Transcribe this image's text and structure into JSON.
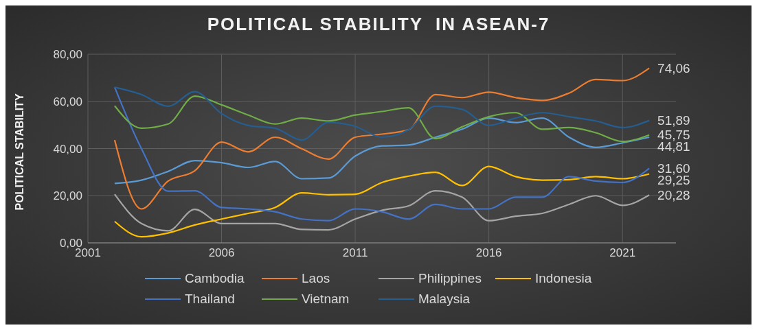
{
  "chart_data": {
    "type": "line",
    "title": "POLITICAL STABILITY  IN ASEAN-7",
    "ylabel": "POLITICAL STABILITY",
    "x": [
      2002,
      2003,
      2004,
      2005,
      2006,
      2007,
      2008,
      2009,
      2010,
      2011,
      2012,
      2013,
      2014,
      2015,
      2016,
      2017,
      2018,
      2019,
      2020,
      2021,
      2022
    ],
    "xlim": [
      2001,
      2023
    ],
    "xticks": [
      2001,
      2006,
      2011,
      2016,
      2021
    ],
    "ylim": [
      0,
      80
    ],
    "yticks": [
      {
        "value": 0,
        "label": "0,00"
      },
      {
        "value": 20,
        "label": "20,00"
      },
      {
        "value": 40,
        "label": "40,00"
      },
      {
        "value": 60,
        "label": "60,00"
      },
      {
        "value": 80,
        "label": "80,00"
      }
    ],
    "grid": true,
    "legend": "bottom",
    "marker": "none",
    "line_style": "solid",
    "series": [
      {
        "name": "Cambodia",
        "color": "#5b9bd5",
        "values": [
          25.2,
          26.6,
          30.3,
          34.9,
          34,
          32,
          34.5,
          27.2,
          27.5,
          36.8,
          41.1,
          41.5,
          44.8,
          48.2,
          52.9,
          51,
          52.9,
          44.8,
          40.5,
          42.4,
          44.81
        ],
        "value_labels": [
          null,
          null,
          null,
          null,
          null,
          null,
          null,
          null,
          null,
          null,
          null,
          null,
          null,
          null,
          null,
          null,
          null,
          null,
          null,
          null,
          "44,81"
        ]
      },
      {
        "name": "Laos",
        "color": "#ed7d31",
        "values": [
          43.6,
          14.4,
          26.2,
          30.6,
          42.7,
          38.6,
          44.8,
          39.9,
          35.5,
          44.8,
          46.1,
          48,
          62.9,
          61.6,
          63.9,
          61.6,
          60.4,
          63.5,
          69.3,
          68.8,
          74.06
        ],
        "value_labels": [
          null,
          null,
          null,
          null,
          null,
          null,
          null,
          null,
          null,
          null,
          null,
          null,
          null,
          null,
          null,
          null,
          null,
          null,
          null,
          null,
          "74,06"
        ]
      },
      {
        "name": "Philippines",
        "color": "#a5a5a5",
        "values": [
          20.6,
          8.2,
          5.1,
          14.2,
          8.2,
          8.2,
          8.2,
          5.7,
          5.5,
          10.1,
          13.8,
          15.7,
          22.1,
          19.4,
          9.4,
          11.3,
          12.5,
          16.3,
          20,
          15.9,
          20.28
        ],
        "value_labels": [
          null,
          null,
          null,
          null,
          null,
          null,
          null,
          null,
          null,
          null,
          null,
          null,
          null,
          null,
          null,
          null,
          null,
          null,
          null,
          null,
          "20,28"
        ]
      },
      {
        "name": "Indonesia",
        "color": "#ffc000",
        "values": [
          9.1,
          2.6,
          4.2,
          7.6,
          10.1,
          12.5,
          15,
          21.2,
          20.4,
          20.6,
          25.6,
          28.3,
          29.9,
          24.3,
          32.4,
          28.1,
          26.6,
          26.8,
          28.1,
          27.2,
          29.25
        ],
        "value_labels": [
          null,
          null,
          null,
          null,
          null,
          null,
          null,
          null,
          null,
          null,
          null,
          null,
          null,
          null,
          null,
          null,
          null,
          null,
          null,
          null,
          "29,25"
        ]
      },
      {
        "name": "Thailand",
        "color": "#4472c4",
        "values": [
          66,
          40,
          21.9,
          22.1,
          15,
          14.4,
          13.2,
          10.1,
          9.4,
          14.4,
          13.2,
          10.1,
          16.3,
          14.4,
          14.4,
          19.4,
          19.4,
          28.1,
          26.2,
          25.6,
          31.6
        ],
        "value_labels": [
          null,
          null,
          null,
          null,
          null,
          null,
          null,
          null,
          null,
          null,
          null,
          null,
          null,
          null,
          null,
          null,
          null,
          null,
          null,
          null,
          "31,60"
        ]
      },
      {
        "name": "Vietnam",
        "color": "#70ad47",
        "values": [
          58.1,
          48.6,
          50.4,
          62.2,
          58.5,
          54.2,
          50.4,
          52.9,
          51.7,
          54.2,
          55.7,
          57.3,
          44.2,
          49.2,
          53.5,
          55.2,
          48.2,
          48.9,
          46.7,
          43,
          45.75
        ],
        "value_labels": [
          null,
          null,
          null,
          null,
          null,
          null,
          null,
          null,
          null,
          null,
          null,
          null,
          null,
          null,
          null,
          null,
          null,
          null,
          null,
          null,
          "45,75"
        ]
      },
      {
        "name": "Malaysia",
        "color": "#255e91",
        "values": [
          66,
          62.9,
          57.9,
          64.1,
          54.8,
          49.8,
          48.6,
          43.6,
          51.1,
          49.4,
          44.8,
          48,
          57.9,
          56.6,
          49.8,
          52.9,
          55.2,
          53.5,
          51.7,
          48.9,
          51.89
        ],
        "value_labels": [
          null,
          null,
          null,
          null,
          null,
          null,
          null,
          null,
          null,
          null,
          null,
          null,
          null,
          null,
          null,
          null,
          null,
          null,
          null,
          null,
          "51,89"
        ]
      }
    ]
  }
}
